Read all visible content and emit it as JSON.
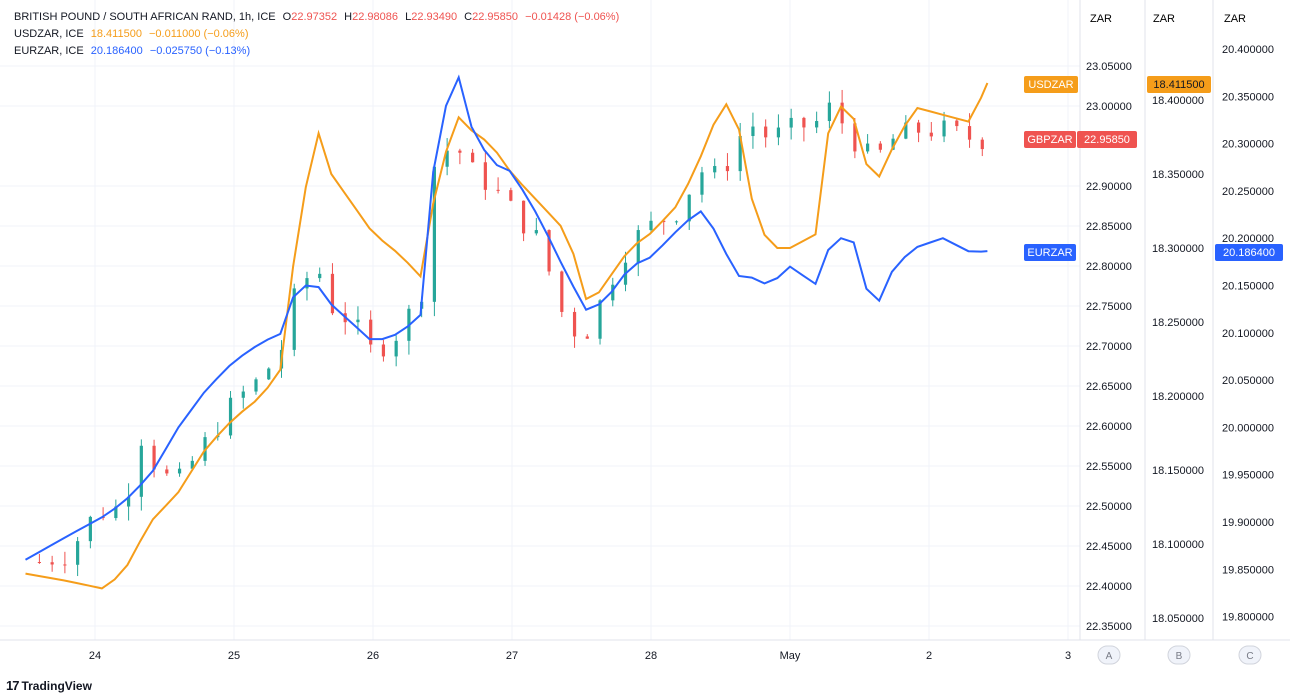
{
  "legend": {
    "main": {
      "symbol": "BRITISH POUND / SOUTH AFRICAN RAND, 1h, ICE",
      "o_label": "O",
      "o": "22.97352",
      "h_label": "H",
      "h": "22.98086",
      "l_label": "L",
      "l": "22.93490",
      "c_label": "C",
      "c": "22.95850",
      "chg": "−0.01428 (−0.06%)"
    },
    "usd": {
      "symbol": "USDZAR, ICE",
      "value": "18.411500",
      "chg": "−0.011000 (−0.06%)"
    },
    "eur": {
      "symbol": "EURZAR, ICE",
      "value": "20.186400",
      "chg": "−0.025750 (−0.13%)"
    }
  },
  "colors": {
    "up": "#26a69a",
    "down": "#ef5350",
    "usd": "#f59d1a",
    "eur": "#2962ff",
    "grid": "#f0f3fa",
    "text": "#131722",
    "axis_text": "#131722",
    "tag_gbp": "#ef5350"
  },
  "axes": {
    "unit_a": "ZAR",
    "unit_b": "ZAR",
    "unit_c": "ZAR",
    "scale_a": "A",
    "scale_b": "B",
    "scale_c": "C",
    "a_ticks": [
      "23.05000",
      "23.00000",
      "22.90000",
      "22.85000",
      "22.80000",
      "22.75000",
      "22.70000",
      "22.65000",
      "22.60000",
      "22.55000",
      "22.50000",
      "22.45000",
      "22.40000",
      "22.35000"
    ],
    "b_ticks": [
      "18.400000",
      "18.350000",
      "18.300000",
      "18.250000",
      "18.200000",
      "18.150000",
      "18.100000",
      "18.050000"
    ],
    "c_ticks": [
      "20.400000",
      "20.350000",
      "20.300000",
      "20.250000",
      "20.200000",
      "20.150000",
      "20.100000",
      "20.050000",
      "20.000000",
      "19.950000",
      "19.900000",
      "19.850000",
      "19.800000"
    ],
    "x_ticks": [
      "24",
      "25",
      "26",
      "27",
      "28",
      "May",
      "2",
      "3"
    ]
  },
  "tags": {
    "usd": {
      "label": "USDZAR",
      "value": "18.411500"
    },
    "gbp": {
      "label": "GBPZAR",
      "value": "22.95850"
    },
    "eur": {
      "label": "EURZAR",
      "value": "20.186400"
    }
  },
  "branding": {
    "name": "TradingView",
    "mark": "17"
  },
  "chart_data": {
    "type": "line",
    "title": "BRITISH POUND / SOUTH AFRICAN RAND, 1h, ICE",
    "x_axis_labels": [
      "24",
      "25",
      "26",
      "27",
      "28",
      "May",
      "2",
      "3"
    ],
    "scales": {
      "A": {
        "series": "GBPZAR",
        "range": [
          22.33,
          23.07
        ]
      },
      "B": {
        "series": "USDZAR",
        "range": [
          18.03,
          18.43
        ]
      },
      "C": {
        "series": "EURZAR",
        "range": [
          19.77,
          20.41
        ]
      }
    },
    "series": [
      {
        "name": "GBPZAR",
        "scale": "A",
        "style": "candles",
        "points": [
          [
            23.6,
            22.43
          ],
          [
            23.8,
            22.44
          ],
          [
            24.0,
            22.49
          ],
          [
            24.2,
            22.5
          ],
          [
            24.3,
            22.56
          ],
          [
            24.35,
            22.6
          ],
          [
            24.45,
            22.54
          ],
          [
            24.6,
            22.53
          ],
          [
            24.8,
            22.58
          ],
          [
            25.0,
            22.63
          ],
          [
            25.2,
            22.66
          ],
          [
            25.35,
            22.7
          ],
          [
            25.45,
            22.77
          ],
          [
            25.6,
            22.8
          ],
          [
            25.7,
            22.75
          ],
          [
            25.85,
            22.73
          ],
          [
            26.0,
            22.69
          ],
          [
            26.2,
            22.72
          ],
          [
            26.35,
            22.77
          ],
          [
            26.45,
            22.94
          ],
          [
            26.6,
            22.95
          ],
          [
            26.7,
            22.92
          ],
          [
            26.85,
            22.9
          ],
          [
            27.0,
            22.87
          ],
          [
            27.2,
            22.83
          ],
          [
            27.4,
            22.72
          ],
          [
            27.55,
            22.72
          ],
          [
            27.7,
            22.78
          ],
          [
            27.85,
            22.83
          ],
          [
            28.0,
            22.85
          ],
          [
            28.2,
            22.87
          ],
          [
            28.35,
            22.92
          ],
          [
            28.5,
            22.91
          ],
          [
            28.6,
            22.95
          ],
          [
            28.7,
            22.98
          ],
          [
            28.85,
            22.96
          ],
          [
            29.0,
            22.97
          ],
          [
            29.2,
            22.98
          ],
          [
            29.3,
            23.0
          ],
          [
            29.45,
            22.96
          ],
          [
            29.6,
            22.93
          ],
          [
            29.75,
            22.96
          ],
          [
            29.9,
            22.97
          ],
          [
            30.1,
            22.97
          ],
          [
            30.3,
            22.96
          ],
          [
            30.42,
            22.958
          ]
        ]
      },
      {
        "name": "USDZAR",
        "scale": "B",
        "style": "line",
        "points": [
          [
            23.5,
            18.08
          ],
          [
            23.8,
            18.075
          ],
          [
            24.05,
            18.07
          ],
          [
            24.2,
            18.08
          ],
          [
            24.4,
            18.115
          ],
          [
            24.6,
            18.135
          ],
          [
            24.8,
            18.165
          ],
          [
            25.0,
            18.185
          ],
          [
            25.2,
            18.2
          ],
          [
            25.35,
            18.22
          ],
          [
            25.45,
            18.31
          ],
          [
            25.6,
            18.38
          ],
          [
            25.7,
            18.35
          ],
          [
            25.85,
            18.33
          ],
          [
            26.0,
            18.31
          ],
          [
            26.2,
            18.295
          ],
          [
            26.35,
            18.28
          ],
          [
            26.45,
            18.34
          ],
          [
            26.6,
            18.39
          ],
          [
            26.7,
            18.38
          ],
          [
            26.85,
            18.37
          ],
          [
            27.0,
            18.35
          ],
          [
            27.2,
            18.33
          ],
          [
            27.4,
            18.31
          ],
          [
            27.55,
            18.26
          ],
          [
            27.7,
            18.28
          ],
          [
            27.85,
            18.3
          ],
          [
            28.0,
            18.31
          ],
          [
            28.2,
            18.33
          ],
          [
            28.35,
            18.36
          ],
          [
            28.5,
            18.395
          ],
          [
            28.6,
            18.4
          ],
          [
            28.7,
            18.34
          ],
          [
            28.85,
            18.3
          ],
          [
            29.0,
            18.3
          ],
          [
            29.2,
            18.31
          ],
          [
            29.3,
            18.4
          ],
          [
            29.45,
            18.39
          ],
          [
            29.6,
            18.34
          ],
          [
            29.75,
            18.37
          ],
          [
            29.9,
            18.395
          ],
          [
            30.1,
            18.39
          ],
          [
            30.3,
            18.385
          ],
          [
            30.42,
            18.4115
          ]
        ]
      },
      {
        "name": "EURZAR",
        "scale": "C",
        "style": "line",
        "points": [
          [
            23.5,
            19.86
          ],
          [
            23.8,
            19.885
          ],
          [
            24.05,
            19.905
          ],
          [
            24.2,
            19.92
          ],
          [
            24.4,
            19.95
          ],
          [
            24.6,
            20.0
          ],
          [
            24.8,
            20.04
          ],
          [
            25.0,
            20.07
          ],
          [
            25.2,
            20.09
          ],
          [
            25.35,
            20.1
          ],
          [
            25.45,
            20.15
          ],
          [
            25.6,
            20.15
          ],
          [
            25.7,
            20.13
          ],
          [
            25.85,
            20.11
          ],
          [
            26.0,
            20.09
          ],
          [
            26.2,
            20.1
          ],
          [
            26.35,
            20.12
          ],
          [
            26.45,
            20.3
          ],
          [
            26.6,
            20.38
          ],
          [
            26.7,
            20.32
          ],
          [
            26.85,
            20.28
          ],
          [
            27.0,
            20.27
          ],
          [
            27.2,
            20.22
          ],
          [
            27.4,
            20.16
          ],
          [
            27.55,
            20.12
          ],
          [
            27.7,
            20.14
          ],
          [
            27.85,
            20.17
          ],
          [
            28.0,
            20.18
          ],
          [
            28.2,
            20.21
          ],
          [
            28.35,
            20.23
          ],
          [
            28.5,
            20.2
          ],
          [
            28.6,
            20.16
          ],
          [
            28.7,
            20.16
          ],
          [
            28.85,
            20.15
          ],
          [
            29.0,
            20.17
          ],
          [
            29.2,
            20.15
          ],
          [
            29.3,
            20.2
          ],
          [
            29.45,
            20.2
          ],
          [
            29.6,
            20.12
          ],
          [
            29.75,
            20.17
          ],
          [
            29.9,
            20.19
          ],
          [
            30.1,
            20.2
          ],
          [
            30.3,
            20.185
          ],
          [
            30.42,
            20.1864
          ]
        ]
      }
    ]
  }
}
